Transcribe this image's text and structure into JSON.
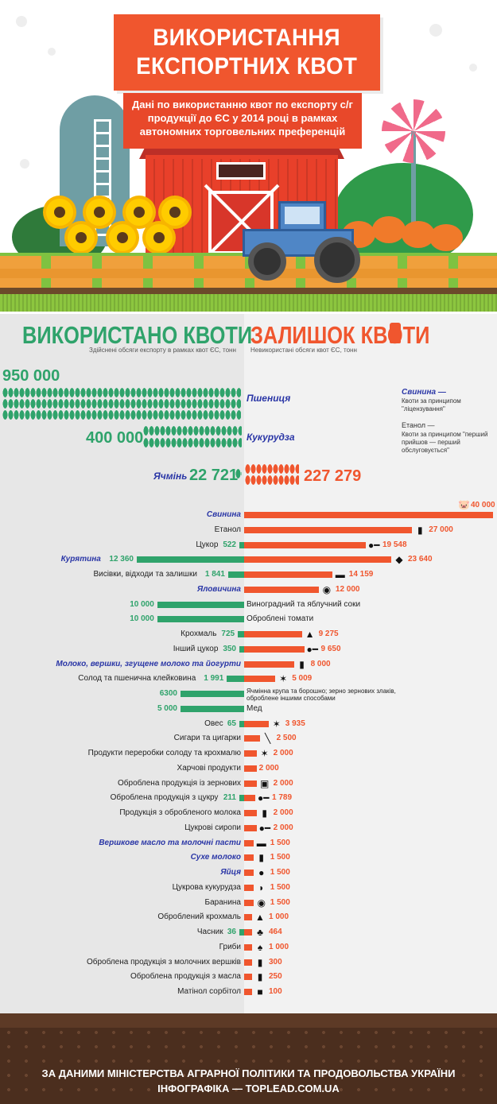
{
  "title": {
    "line1": "ВИКОРИСТАННЯ",
    "line2": "ЕКСПОРТНИХ КВОТ"
  },
  "subtitle": "Дані по використанню квот по експорту с/г продукції до ЄС у 2014 році в рамках автономних торговельних преференцій",
  "left_heading": "ВИКОРИСТАНО КВОТИ",
  "left_subheading": "Здійснені обсяги експорту в рамках квот ЄС, тонн",
  "right_heading": "ЗАЛИШОК КВОТИ",
  "right_subheading": "Невикористані обсяги квот ЄС, тонн",
  "grains": {
    "wheat_value": "950 000",
    "wheat_label": "Пшениця",
    "corn_value": "400 000",
    "corn_label": "Кукурудза",
    "barley_label": "Ячмінь",
    "barley_used": "22 721",
    "barley_remaining": "227 279"
  },
  "legend": {
    "pork_title": "Свинина —",
    "pork_text": "Квоти за принципом \"ліцензування\"",
    "ethanol_title": "Етанол —",
    "ethanol_text": "Квоти за принципом \"перший прийшов — перший обслуговується\""
  },
  "colors": {
    "used": "#2fa36b",
    "remaining": "#f0562e",
    "highlight": "#2a36a6"
  },
  "rows": [
    {
      "label": "Свинина",
      "blue": true,
      "used": "",
      "remaining": "40 000",
      "rem_val": 40000,
      "used_val": 0,
      "icon": "pig-icon",
      "glyph": "🐷"
    },
    {
      "label": "Етанол",
      "blue": false,
      "used": "",
      "remaining": "27 000",
      "rem_val": 27000,
      "used_val": 0,
      "icon": "bottle-icon",
      "glyph": "▮"
    },
    {
      "label": "Цукор",
      "blue": false,
      "used": "522",
      "remaining": "19 548",
      "rem_val": 19548,
      "used_val": 522,
      "icon": "spoon-icon",
      "glyph": "●━"
    },
    {
      "label": "Курятина",
      "blue": true,
      "used": "12 360",
      "remaining": "23 640",
      "rem_val": 23640,
      "used_val": 12360,
      "icon": "chicken-icon",
      "glyph": "◆"
    },
    {
      "label": "Висівки, відходи та залишки",
      "blue": false,
      "used": "1 841",
      "remaining": "14 159",
      "rem_val": 14159,
      "used_val": 1841,
      "icon": "cart-icon",
      "glyph": "▬"
    },
    {
      "label": "Яловичина",
      "blue": true,
      "used": "",
      "remaining": "12 000",
      "rem_val": 12000,
      "used_val": 0,
      "icon": "cow-icon",
      "glyph": "◉"
    },
    {
      "label": "",
      "blue": false,
      "used": "10 000",
      "remaining": "",
      "rem_val": 0,
      "used_val": 10000,
      "icon": "",
      "glyph": "",
      "right_text": "Виноградний та яблучний соки"
    },
    {
      "label": "",
      "blue": false,
      "used": "10 000",
      "remaining": "",
      "rem_val": 0,
      "used_val": 10000,
      "icon": "",
      "glyph": "",
      "right_text": "Оброблені томати"
    },
    {
      "label": "Крохмаль",
      "blue": false,
      "used": "725",
      "remaining": "9 275",
      "rem_val": 9275,
      "used_val": 725,
      "icon": "sack-icon",
      "glyph": "▲"
    },
    {
      "label": "Інший цукор",
      "blue": false,
      "used": "350",
      "remaining": "9 650",
      "rem_val": 9650,
      "used_val": 350,
      "icon": "spoon-icon",
      "glyph": "●━"
    },
    {
      "label": "Молоко, вершки, згущене молоко та йогурти",
      "blue": true,
      "used": "",
      "remaining": "8 000",
      "rem_val": 8000,
      "used_val": 0,
      "icon": "milk-icon",
      "glyph": "▮"
    },
    {
      "label": "Солод та пшенична клейковина",
      "blue": false,
      "used": "1 991",
      "remaining": "5 009",
      "rem_val": 5009,
      "used_val": 1991,
      "icon": "wheat-icon",
      "glyph": "✶"
    },
    {
      "label": "",
      "blue": false,
      "used": "6300",
      "remaining": "",
      "rem_val": 0,
      "used_val": 6300,
      "icon": "",
      "glyph": "",
      "right_text": "Ячмінна крупа та борошно; зерно зернових злаків, оброблене іншими способами",
      "small": true
    },
    {
      "label": "",
      "blue": false,
      "used": "5 000",
      "remaining": "",
      "rem_val": 0,
      "used_val": 5000,
      "icon": "",
      "glyph": "",
      "right_text": "Мед"
    },
    {
      "label": "Овес",
      "blue": false,
      "used": "65",
      "remaining": "3 935",
      "rem_val": 3935,
      "used_val": 65,
      "icon": "wheat-icon",
      "glyph": "✶"
    },
    {
      "label": "Сигари та цигарки",
      "blue": false,
      "used": "",
      "remaining": "2 500",
      "rem_val": 2500,
      "used_val": 0,
      "icon": "cigar-icon",
      "glyph": "╲"
    },
    {
      "label": "Продукти переробки солоду та крохмалю",
      "blue": false,
      "used": "",
      "remaining": "2 000",
      "rem_val": 2000,
      "used_val": 0,
      "icon": "wheat-icon",
      "glyph": "✶"
    },
    {
      "label": "Харчові продукти",
      "blue": false,
      "used": "",
      "remaining": "2 000",
      "rem_val": 2000,
      "used_val": 0,
      "icon": "",
      "glyph": ""
    },
    {
      "label": "Оброблена продукція із зернових",
      "blue": false,
      "used": "",
      "remaining": "2 000",
      "rem_val": 2000,
      "used_val": 0,
      "icon": "jar-icon",
      "glyph": "▣"
    },
    {
      "label": "Оброблена продукція з цукру",
      "blue": false,
      "used": "211",
      "remaining": "1 789",
      "rem_val": 1789,
      "used_val": 211,
      "icon": "spoon-icon",
      "glyph": "●━"
    },
    {
      "label": "Продукція з обробленого молока",
      "blue": false,
      "used": "",
      "remaining": "2 000",
      "rem_val": 2000,
      "used_val": 0,
      "icon": "milk-icon",
      "glyph": "▮"
    },
    {
      "label": "Цукрові сиропи",
      "blue": false,
      "used": "",
      "remaining": "2 000",
      "rem_val": 2000,
      "used_val": 0,
      "icon": "spoon-icon",
      "glyph": "●━"
    },
    {
      "label": "Вершкове масло та молочні пасти",
      "blue": true,
      "used": "",
      "remaining": "1 500",
      "rem_val": 1500,
      "used_val": 0,
      "icon": "butter-icon",
      "glyph": "▬"
    },
    {
      "label": "Сухе молоко",
      "blue": true,
      "used": "",
      "remaining": "1 500",
      "rem_val": 1500,
      "used_val": 0,
      "icon": "milk-icon",
      "glyph": "▮"
    },
    {
      "label": "Яйця",
      "blue": true,
      "used": "",
      "remaining": "1 500",
      "rem_val": 1500,
      "used_val": 0,
      "icon": "egg-icon",
      "glyph": "●"
    },
    {
      "label": "Цукрова кукурудза",
      "blue": false,
      "used": "",
      "remaining": "1 500",
      "rem_val": 1500,
      "used_val": 0,
      "icon": "corn-icon",
      "glyph": "◗"
    },
    {
      "label": "Баранина",
      "blue": false,
      "used": "",
      "remaining": "1 500",
      "rem_val": 1500,
      "used_val": 0,
      "icon": "sheep-icon",
      "glyph": "◉"
    },
    {
      "label": "Оброблений крохмаль",
      "blue": false,
      "used": "",
      "remaining": "1 000",
      "rem_val": 1000,
      "used_val": 0,
      "icon": "sack-icon",
      "glyph": "▲"
    },
    {
      "label": "Часник",
      "blue": false,
      "used": "36",
      "remaining": "464",
      "rem_val": 464,
      "used_val": 36,
      "icon": "garlic-icon",
      "glyph": "♣"
    },
    {
      "label": "Гриби",
      "blue": false,
      "used": "",
      "remaining": "1 000",
      "rem_val": 1000,
      "used_val": 0,
      "icon": "mushroom-icon",
      "glyph": "♠"
    },
    {
      "label": "Оброблена продукція з молочних вершків",
      "blue": false,
      "used": "",
      "remaining": "300",
      "rem_val": 300,
      "used_val": 0,
      "icon": "bottle-icon",
      "glyph": "▮"
    },
    {
      "label": "Оброблена продукція з масла",
      "blue": false,
      "used": "",
      "remaining": "250",
      "rem_val": 250,
      "used_val": 0,
      "icon": "can-icon",
      "glyph": "▮"
    },
    {
      "label": "Матінол сорбітол",
      "blue": false,
      "used": "",
      "remaining": "100",
      "rem_val": 100,
      "used_val": 0,
      "icon": "box-icon",
      "glyph": "■"
    }
  ],
  "footer": {
    "line1": "ЗА ДАНИМИ МІНІСТЕРСТВА АГРАРНОЇ ПОЛІТИКИ ТА ПРОДОВОЛЬСТВА УКРАЇНИ",
    "line2": "ІНФОГРАФІКА — TOPLEAD.COM.UA"
  }
}
